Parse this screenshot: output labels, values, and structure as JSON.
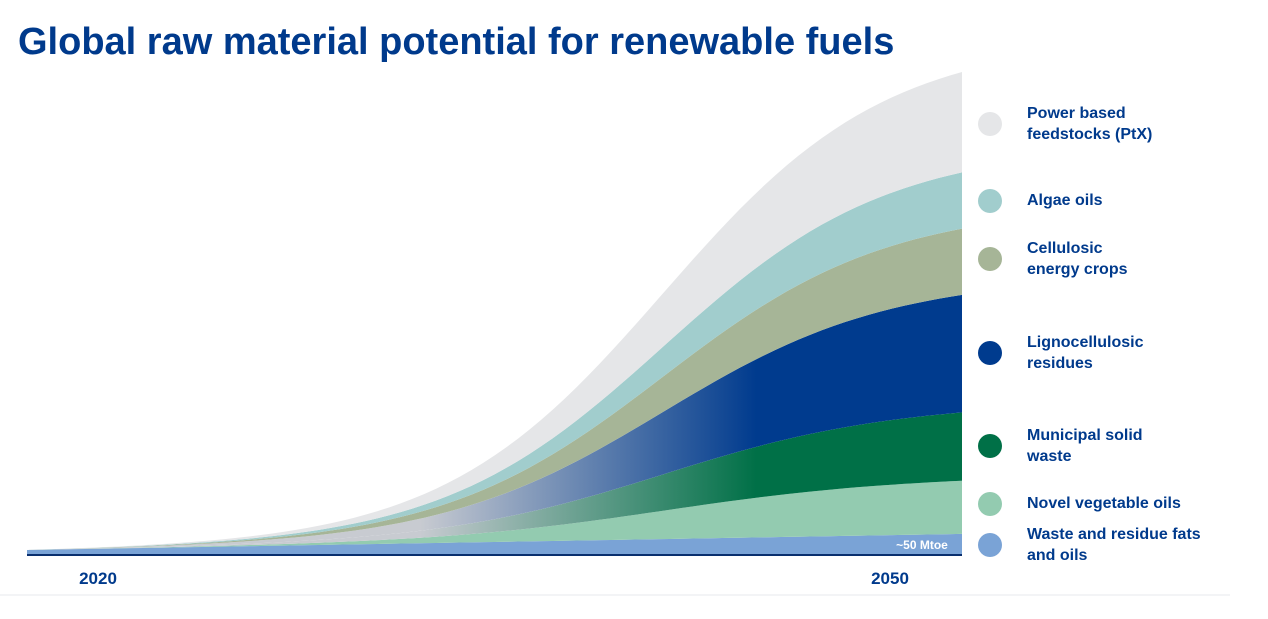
{
  "title": "Global raw material potential for renewable fuels",
  "chart_data": {
    "type": "area",
    "stacked": true,
    "x": [
      2020,
      2050
    ],
    "x_tick_labels": [
      "2020",
      "2050"
    ],
    "annotation": "~50 Mtoe",
    "grid": false,
    "legend_placement": "right",
    "series": [
      {
        "name": "Waste and residue fats\nand oils",
        "color": "#7aa3d6",
        "values": [
          4,
          20
        ]
      },
      {
        "name": "Novel vegetable oils",
        "color": "#93cbb0",
        "values": [
          0,
          53
        ]
      },
      {
        "name": "Municipal solid\nwaste",
        "color": "#007047",
        "values": [
          0,
          68
        ]
      },
      {
        "name": "Lignocellulosic\nresidues",
        "color": "#003b8e",
        "values": [
          0,
          117
        ]
      },
      {
        "name": "Cellulosic\nenergy crops",
        "color": "#a6b597",
        "values": [
          0,
          66
        ]
      },
      {
        "name": "Algae oils",
        "color": "#a1cdcd",
        "values": [
          0,
          56
        ]
      },
      {
        "name": "Power based\nfeedstocks (PtX)",
        "color": "#e5e6e8",
        "values": [
          0,
          100
        ]
      }
    ]
  }
}
